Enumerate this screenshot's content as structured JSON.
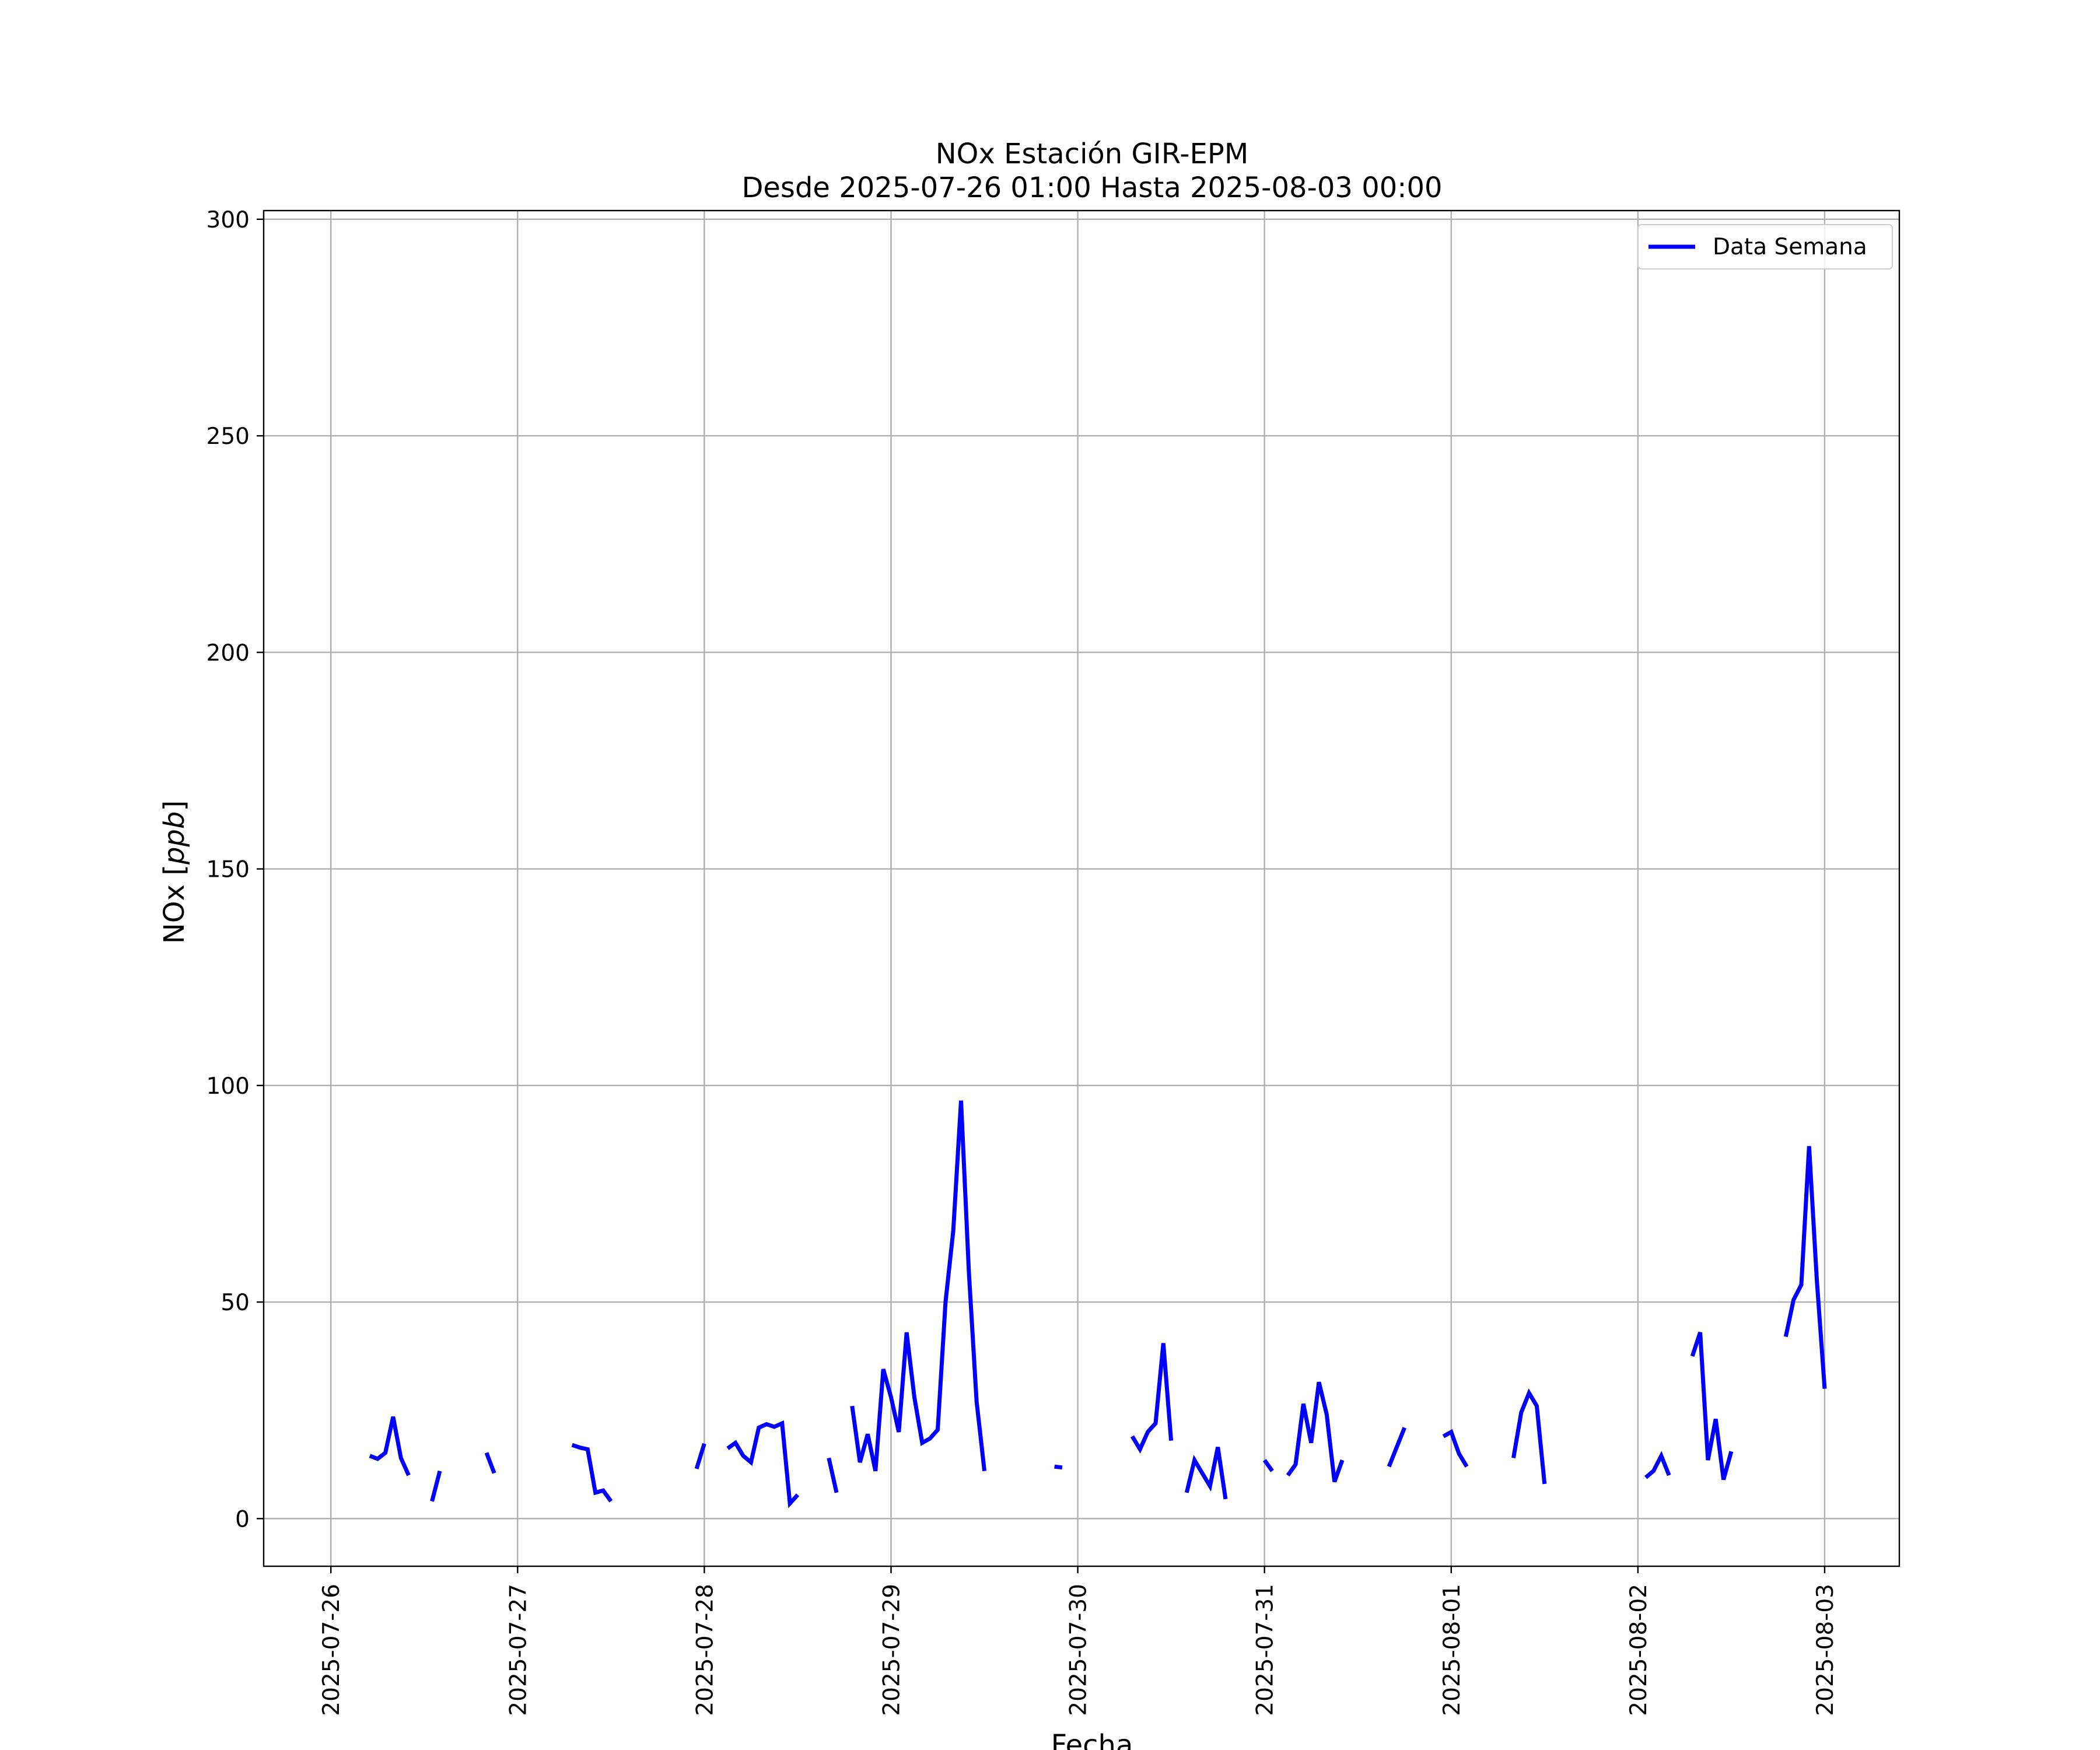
{
  "chart_data": {
    "type": "line",
    "title": "NOx Estación GIR-EPM",
    "subtitle": "Desde 2025-07-26 01:00 Hasta 2025-08-03 00:00",
    "xlabel": "Fecha",
    "ylabel": "NOx [ppb]",
    "ylabel_prefix": "NOx [",
    "ylabel_unit": "ppb",
    "ylabel_suffix": "]",
    "x_start": "2025-07-26 00:00",
    "xlim_days": [
      -0.36,
      8.4
    ],
    "ylim": [
      -11,
      302
    ],
    "xticks": [
      "2025-07-26",
      "2025-07-27",
      "2025-07-28",
      "2025-07-29",
      "2025-07-30",
      "2025-07-31",
      "2025-08-01",
      "2025-08-02",
      "2025-08-03"
    ],
    "yticks": [
      0,
      50,
      100,
      150,
      200,
      250,
      300
    ],
    "grid": true,
    "legend_position": "upper right",
    "series": [
      {
        "name": "Data Semana",
        "color": "#0000ff",
        "segments": [
          [
            [
              "2025-07-26 05:00",
              14.5
            ],
            [
              "2025-07-26 06:00",
              13.8
            ],
            [
              "2025-07-26 07:00",
              15.2
            ],
            [
              "2025-07-26 08:00",
              23.5
            ],
            [
              "2025-07-26 09:00",
              14.0
            ],
            [
              "2025-07-26 10:00",
              10.0
            ]
          ],
          [
            [
              "2025-07-26 13:00",
              4.0
            ],
            [
              "2025-07-26 14:00",
              11.0
            ]
          ],
          [
            [
              "2025-07-26 20:00",
              15.2
            ],
            [
              "2025-07-26 21:00",
              10.5
            ]
          ],
          [
            [
              "2025-07-27 07:00",
              17.0
            ],
            [
              "2025-07-27 08:00",
              16.4
            ],
            [
              "2025-07-27 09:00",
              16.0
            ],
            [
              "2025-07-27 10:00",
              6.0
            ],
            [
              "2025-07-27 11:00",
              6.5
            ],
            [
              "2025-07-27 12:00",
              4.0
            ]
          ],
          [
            [
              "2025-07-27 23:00",
              11.5
            ],
            [
              "2025-07-28 00:00",
              17.3
            ]
          ],
          [
            [
              "2025-07-28 03:00",
              16.2
            ],
            [
              "2025-07-28 04:00",
              17.5
            ],
            [
              "2025-07-28 05:00",
              14.5
            ],
            [
              "2025-07-28 06:00",
              13.0
            ],
            [
              "2025-07-28 07:00",
              21.0
            ],
            [
              "2025-07-28 08:00",
              21.8
            ],
            [
              "2025-07-28 09:00",
              21.2
            ],
            [
              "2025-07-28 10:00",
              22.0
            ],
            [
              "2025-07-28 11:00",
              3.5
            ],
            [
              "2025-07-28 12:00",
              5.5
            ]
          ],
          [
            [
              "2025-07-28 16:00",
              14.0
            ],
            [
              "2025-07-28 17:00",
              6.0
            ]
          ],
          [
            [
              "2025-07-28 19:00",
              26.0
            ],
            [
              "2025-07-28 20:00",
              13.0
            ],
            [
              "2025-07-28 21:00",
              19.5
            ],
            [
              "2025-07-28 22:00",
              11.0
            ],
            [
              "2025-07-28 23:00",
              34.5
            ],
            [
              "2025-07-29 00:00",
              28.0
            ],
            [
              "2025-07-29 01:00",
              20.0
            ],
            [
              "2025-07-29 02:00",
              43.0
            ],
            [
              "2025-07-29 03:00",
              28.0
            ],
            [
              "2025-07-29 04:00",
              17.5
            ],
            [
              "2025-07-29 05:00",
              18.5
            ],
            [
              "2025-07-29 06:00",
              20.5
            ],
            [
              "2025-07-29 07:00",
              50.0
            ],
            [
              "2025-07-29 08:00",
              66.5
            ],
            [
              "2025-07-29 09:00",
              96.5
            ],
            [
              "2025-07-29 10:00",
              57.0
            ],
            [
              "2025-07-29 11:00",
              27.0
            ],
            [
              "2025-07-29 12:00",
              11.0
            ]
          ],
          [
            [
              "2025-07-29 21:00",
              12.0
            ],
            [
              "2025-07-29 22:00",
              11.8
            ]
          ],
          [
            [
              "2025-07-30 07:00",
              19.0
            ],
            [
              "2025-07-30 08:00",
              16.0
            ],
            [
              "2025-07-30 09:00",
              20.0
            ],
            [
              "2025-07-30 10:00",
              22.0
            ],
            [
              "2025-07-30 11:00",
              40.5
            ],
            [
              "2025-07-30 12:00",
              18.0
            ]
          ],
          [
            [
              "2025-07-30 14:00",
              6.0
            ],
            [
              "2025-07-30 15:00",
              13.5
            ],
            [
              "2025-07-30 16:00",
              10.5
            ],
            [
              "2025-07-30 17:00",
              7.5
            ],
            [
              "2025-07-30 18:00",
              16.5
            ],
            [
              "2025-07-30 19:00",
              4.5
            ]
          ],
          [
            [
              "2025-07-31 00:00",
              13.5
            ],
            [
              "2025-07-31 01:00",
              11.0
            ]
          ],
          [
            [
              "2025-07-31 03:00",
              10.0
            ],
            [
              "2025-07-31 04:00",
              12.5
            ],
            [
              "2025-07-31 05:00",
              26.5
            ],
            [
              "2025-07-31 06:00",
              17.5
            ],
            [
              "2025-07-31 07:00",
              31.5
            ],
            [
              "2025-07-31 08:00",
              24.0
            ],
            [
              "2025-07-31 09:00",
              8.5
            ],
            [
              "2025-07-31 10:00",
              13.5
            ]
          ],
          [
            [
              "2025-07-31 16:00",
              12.0
            ],
            [
              "2025-07-31 17:00",
              16.5
            ],
            [
              "2025-07-31 18:00",
              21.0
            ]
          ],
          [
            [
              "2025-07-31 23:00",
              19.0
            ],
            [
              "2025-08-01 00:00",
              20.0
            ],
            [
              "2025-08-01 01:00",
              15.0
            ],
            [
              "2025-08-01 02:00",
              12.0
            ]
          ],
          [
            [
              "2025-08-01 08:00",
              14.0
            ],
            [
              "2025-08-01 09:00",
              24.5
            ],
            [
              "2025-08-01 10:00",
              29.0
            ],
            [
              "2025-08-01 11:00",
              26.0
            ],
            [
              "2025-08-01 12:00",
              8.0
            ]
          ],
          [
            [
              "2025-08-02 01:00",
              9.5
            ],
            [
              "2025-08-02 02:00",
              11.0
            ],
            [
              "2025-08-02 03:00",
              14.5
            ],
            [
              "2025-08-02 04:00",
              10.0
            ]
          ],
          [
            [
              "2025-08-02 07:00",
              37.5
            ],
            [
              "2025-08-02 08:00",
              43.0
            ],
            [
              "2025-08-02 09:00",
              13.5
            ],
            [
              "2025-08-02 10:00",
              23.0
            ],
            [
              "2025-08-02 11:00",
              9.0
            ],
            [
              "2025-08-02 12:00",
              15.5
            ]
          ],
          [
            [
              "2025-08-02 19:00",
              42.0
            ],
            [
              "2025-08-02 20:00",
              50.5
            ],
            [
              "2025-08-02 21:00",
              54.0
            ],
            [
              "2025-08-02 22:00",
              86.0
            ],
            [
              "2025-08-02 23:00",
              55.0
            ],
            [
              "2025-08-03 00:00",
              30.0
            ]
          ]
        ]
      }
    ]
  }
}
